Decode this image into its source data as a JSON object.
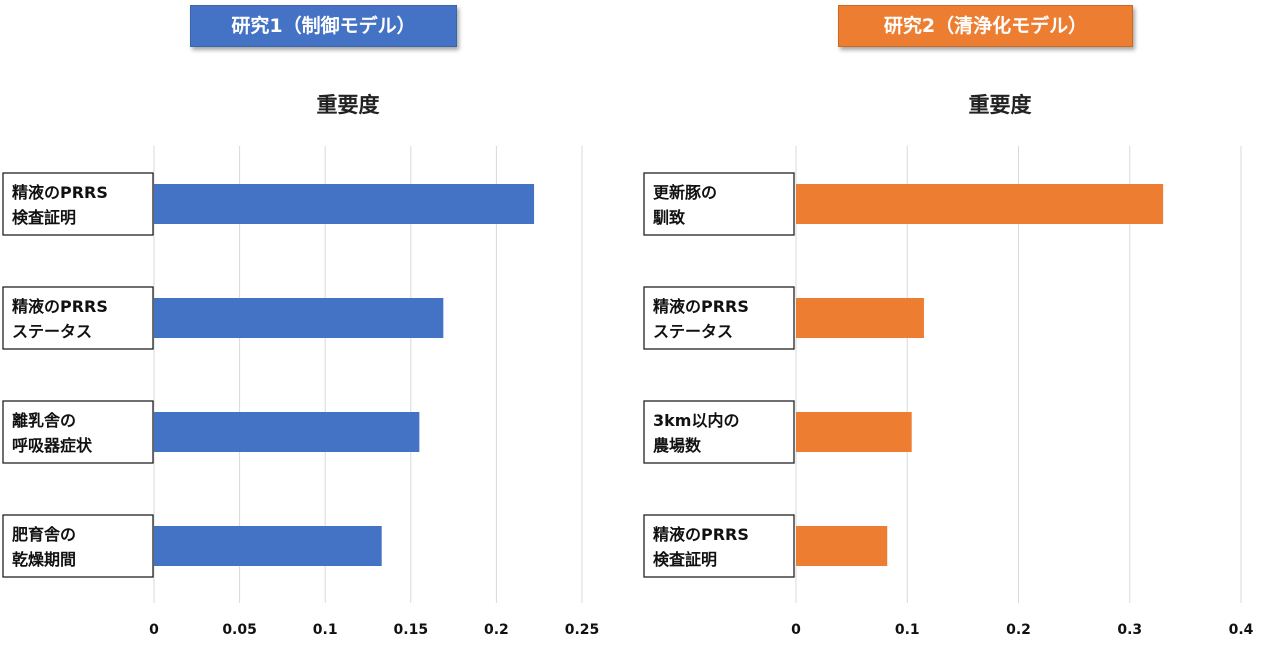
{
  "chart_data": [
    {
      "type": "bar",
      "orientation": "horizontal",
      "banner": "研究1（制御モデル）",
      "title": "重要度",
      "color": "#4472c4",
      "categories": [
        [
          "精液のPRRS",
          "検査証明"
        ],
        [
          "精液のPRRS",
          "ステータス"
        ],
        [
          "離乳舎の",
          "呼吸器症状"
        ],
        [
          "肥育舎の",
          "乾燥期間"
        ]
      ],
      "values": [
        0.222,
        0.169,
        0.155,
        0.133
      ],
      "xlim": [
        0,
        0.25
      ],
      "ticks": [
        "0",
        "0.05",
        "0.1",
        "0.15",
        "0.2",
        "0.25"
      ],
      "grid": true
    },
    {
      "type": "bar",
      "orientation": "horizontal",
      "banner": "研究2（清浄化モデル）",
      "title": "重要度",
      "color": "#ed7d31",
      "categories": [
        [
          "更新豚の",
          "馴致"
        ],
        [
          "精液のPRRS",
          "ステータス"
        ],
        [
          "3km以内の",
          "農場数"
        ],
        [
          "精液のPRRS",
          "検査証明"
        ]
      ],
      "values": [
        0.33,
        0.115,
        0.104,
        0.082
      ],
      "xlim": [
        0,
        0.4
      ],
      "ticks": [
        "0",
        "0.1",
        "0.2",
        "0.3",
        "0.4"
      ],
      "grid": true
    }
  ]
}
